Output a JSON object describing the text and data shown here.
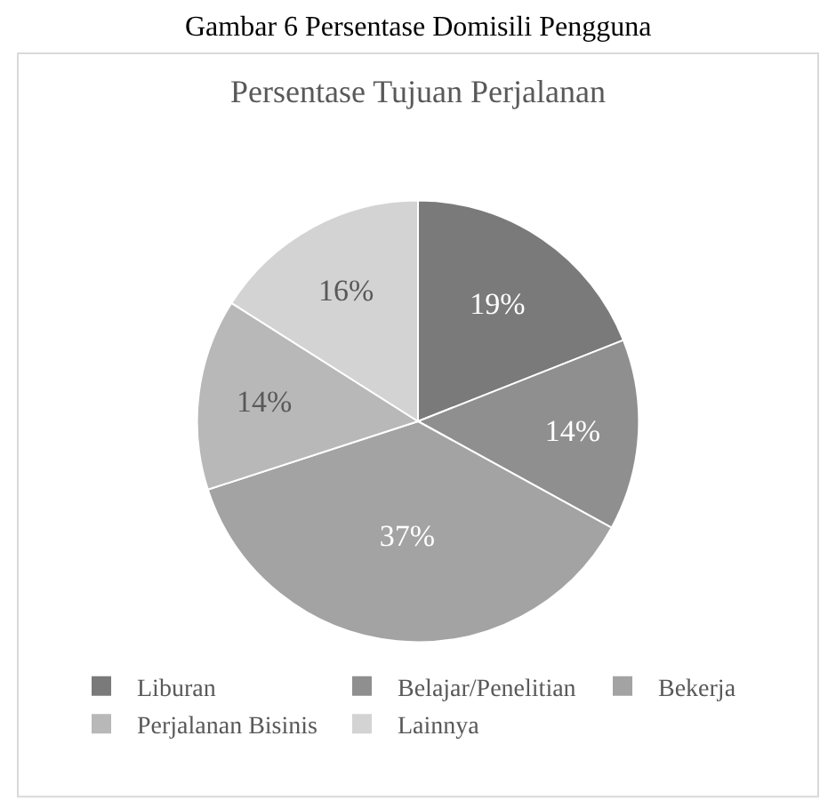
{
  "chart_data": {
    "type": "pie",
    "title": "Persentase Tujuan Perjalanan",
    "annotations": [
      "Gambar 6 Persentase Domisili Pengguna"
    ],
    "categories": [
      "Liburan",
      "Belajar/Penelitian",
      "Bekerja",
      "Perjalanan Bisinis",
      "Lainnya"
    ],
    "values": [
      19,
      14,
      37,
      14,
      16
    ],
    "colors": [
      "#7a7a7a",
      "#8f8f8f",
      "#a3a3a3",
      "#b8b8b8",
      "#d3d3d3"
    ],
    "value_labels": [
      "19%",
      "14%",
      "37%",
      "14%",
      "16%"
    ],
    "legend": "bottom"
  }
}
